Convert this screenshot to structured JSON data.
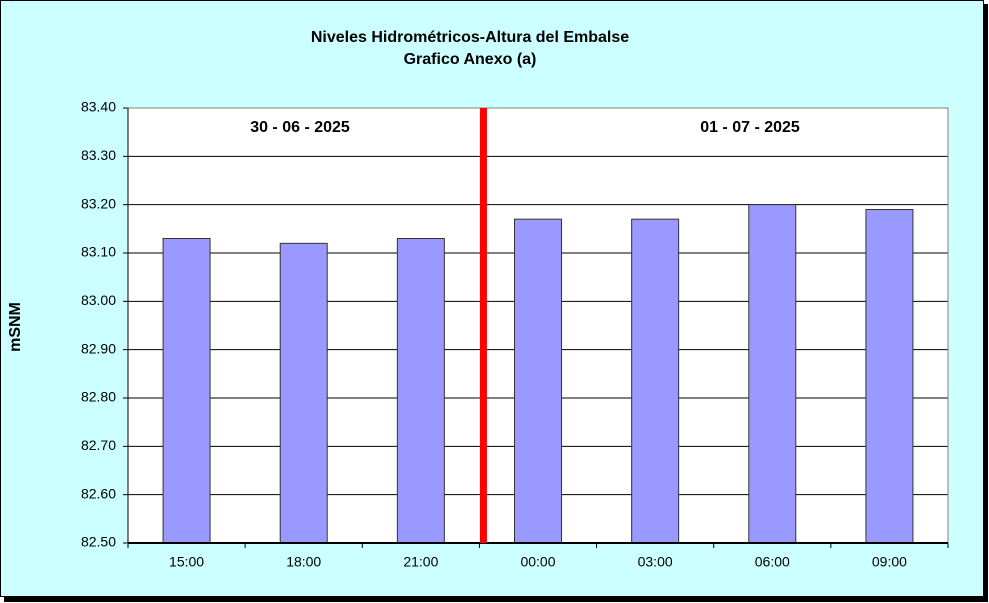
{
  "chart_data": {
    "type": "bar",
    "title": "Niveles Hidrométricos-Altura del Embalse",
    "subtitle": "Grafico Anexo (a)",
    "y_label": "mSNM",
    "annotations": [
      "30 - 06 - 2025",
      "01 - 07 - 2025"
    ],
    "categories": [
      "15:00",
      "18:00",
      "21:00",
      "00:00",
      "03:00",
      "06:00",
      "09:00"
    ],
    "values": [
      83.13,
      83.12,
      83.13,
      83.17,
      83.17,
      83.2,
      83.19
    ],
    "color": "#9999ff",
    "ylim": [
      82.5,
      83.4
    ],
    "yticks": [
      {
        "value": 82.5,
        "label": "82.50"
      },
      {
        "value": 82.6,
        "label": "82.60"
      },
      {
        "value": 82.7,
        "label": "82.70"
      },
      {
        "value": 82.8,
        "label": "82.80"
      },
      {
        "value": 82.9,
        "label": "82.90"
      },
      {
        "value": 83.0,
        "label": "83.00"
      },
      {
        "value": 83.1,
        "label": "83.10"
      },
      {
        "value": 83.2,
        "label": "83.20"
      },
      {
        "value": 83.3,
        "label": "83.30"
      },
      {
        "value": 83.4,
        "label": "83.40"
      }
    ],
    "grid": true
  }
}
